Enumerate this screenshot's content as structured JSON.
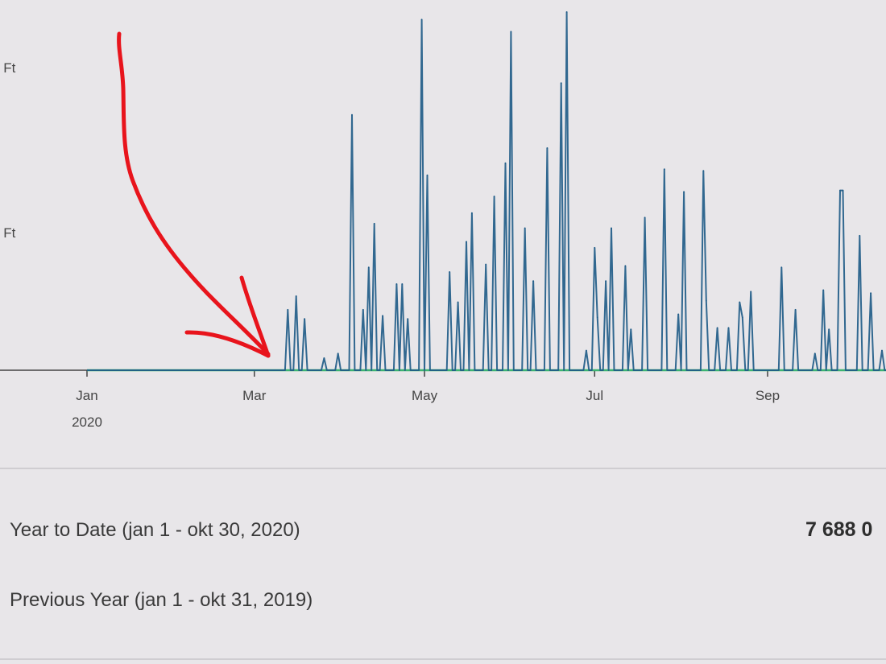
{
  "chart_data": {
    "type": "line",
    "y_tick_labels": [
      "k Ft",
      "k Ft"
    ],
    "x_tick_labels": [
      "Jan",
      "Mar",
      "May",
      "Jul",
      "Sep"
    ],
    "x_year_label": "2020",
    "x_range": [
      "2020-01-01",
      "2020-10-30"
    ],
    "ylim": [
      0,
      2.45
    ],
    "grid": false,
    "series": [
      {
        "color": "#1d5a86",
        "points": [
          [
            "2020-03-13",
            0.4
          ],
          [
            "2020-03-16",
            0.49
          ],
          [
            "2020-03-19",
            0.34
          ],
          [
            "2020-03-26",
            0.08
          ],
          [
            "2020-03-31",
            0.11
          ],
          [
            "2020-04-05",
            1.69
          ],
          [
            "2020-04-09",
            0.4
          ],
          [
            "2020-04-11",
            0.68
          ],
          [
            "2020-04-13",
            0.97
          ],
          [
            "2020-04-16",
            0.36
          ],
          [
            "2020-04-21",
            0.57
          ],
          [
            "2020-04-23",
            0.57
          ],
          [
            "2020-04-25",
            0.34
          ],
          [
            "2020-04-30",
            2.32
          ],
          [
            "2020-05-02",
            1.29
          ],
          [
            "2020-05-10",
            0.65
          ],
          [
            "2020-05-13",
            0.45
          ],
          [
            "2020-05-16",
            0.85
          ],
          [
            "2020-05-18",
            1.04
          ],
          [
            "2020-05-23",
            0.7
          ],
          [
            "2020-05-26",
            1.15
          ],
          [
            "2020-05-30",
            1.37
          ],
          [
            "2020-06-01",
            2.24
          ],
          [
            "2020-06-06",
            0.94
          ],
          [
            "2020-06-09",
            0.59
          ],
          [
            "2020-06-14",
            1.47
          ],
          [
            "2020-06-19",
            1.9
          ],
          [
            "2020-06-21",
            2.37
          ],
          [
            "2020-06-28",
            0.13
          ],
          [
            "2020-07-01",
            0.81
          ],
          [
            "2020-07-02",
            0.35
          ],
          [
            "2020-07-05",
            0.59
          ],
          [
            "2020-07-07",
            0.94
          ],
          [
            "2020-07-12",
            0.69
          ],
          [
            "2020-07-14",
            0.27
          ],
          [
            "2020-07-19",
            1.01
          ],
          [
            "2020-07-26",
            1.33
          ],
          [
            "2020-07-31",
            0.37
          ],
          [
            "2020-08-02",
            1.18
          ],
          [
            "2020-08-09",
            1.32
          ],
          [
            "2020-08-10",
            0.46
          ],
          [
            "2020-08-14",
            0.28
          ],
          [
            "2020-08-18",
            0.28
          ],
          [
            "2020-08-22",
            0.45
          ],
          [
            "2020-08-23",
            0.35
          ],
          [
            "2020-08-26",
            0.52
          ],
          [
            "2020-09-06",
            0.68
          ],
          [
            "2020-09-11",
            0.4
          ],
          [
            "2020-09-18",
            0.11
          ],
          [
            "2020-09-21",
            0.53
          ],
          [
            "2020-09-23",
            0.27
          ],
          [
            "2020-09-27",
            1.19
          ],
          [
            "2020-09-28",
            1.19
          ],
          [
            "2020-10-04",
            0.89
          ],
          [
            "2020-10-08",
            0.51
          ],
          [
            "2020-10-12",
            0.13
          ]
        ]
      },
      {
        "color": "#3cb371",
        "points": [
          [
            "2020-01-01",
            0
          ],
          [
            "2020-10-30",
            0
          ]
        ]
      }
    ]
  },
  "annotation": {
    "color": "#e8141c"
  },
  "summary": {
    "rows": [
      {
        "label": "Year to Date (jan 1 - okt 30, 2020)",
        "value": "7 688 0"
      },
      {
        "label": "Previous Year (jan 1 - okt 31, 2019)",
        "value": ""
      }
    ]
  }
}
